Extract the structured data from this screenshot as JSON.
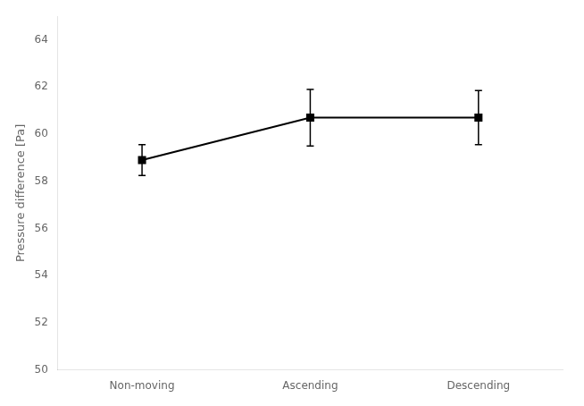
{
  "chart_data": {
    "type": "line",
    "categories": [
      "Non-moving",
      "Ascending",
      "Descending"
    ],
    "values": [
      58.9,
      60.7,
      60.7
    ],
    "errors": [
      0.65,
      1.2,
      1.15
    ],
    "ylabel": "Pressure difference [Pa]",
    "ylim": [
      50,
      65
    ],
    "yticks": [
      50,
      52,
      54,
      56,
      58,
      60,
      62,
      64
    ],
    "color": "black",
    "marker": "square",
    "grid": false
  }
}
